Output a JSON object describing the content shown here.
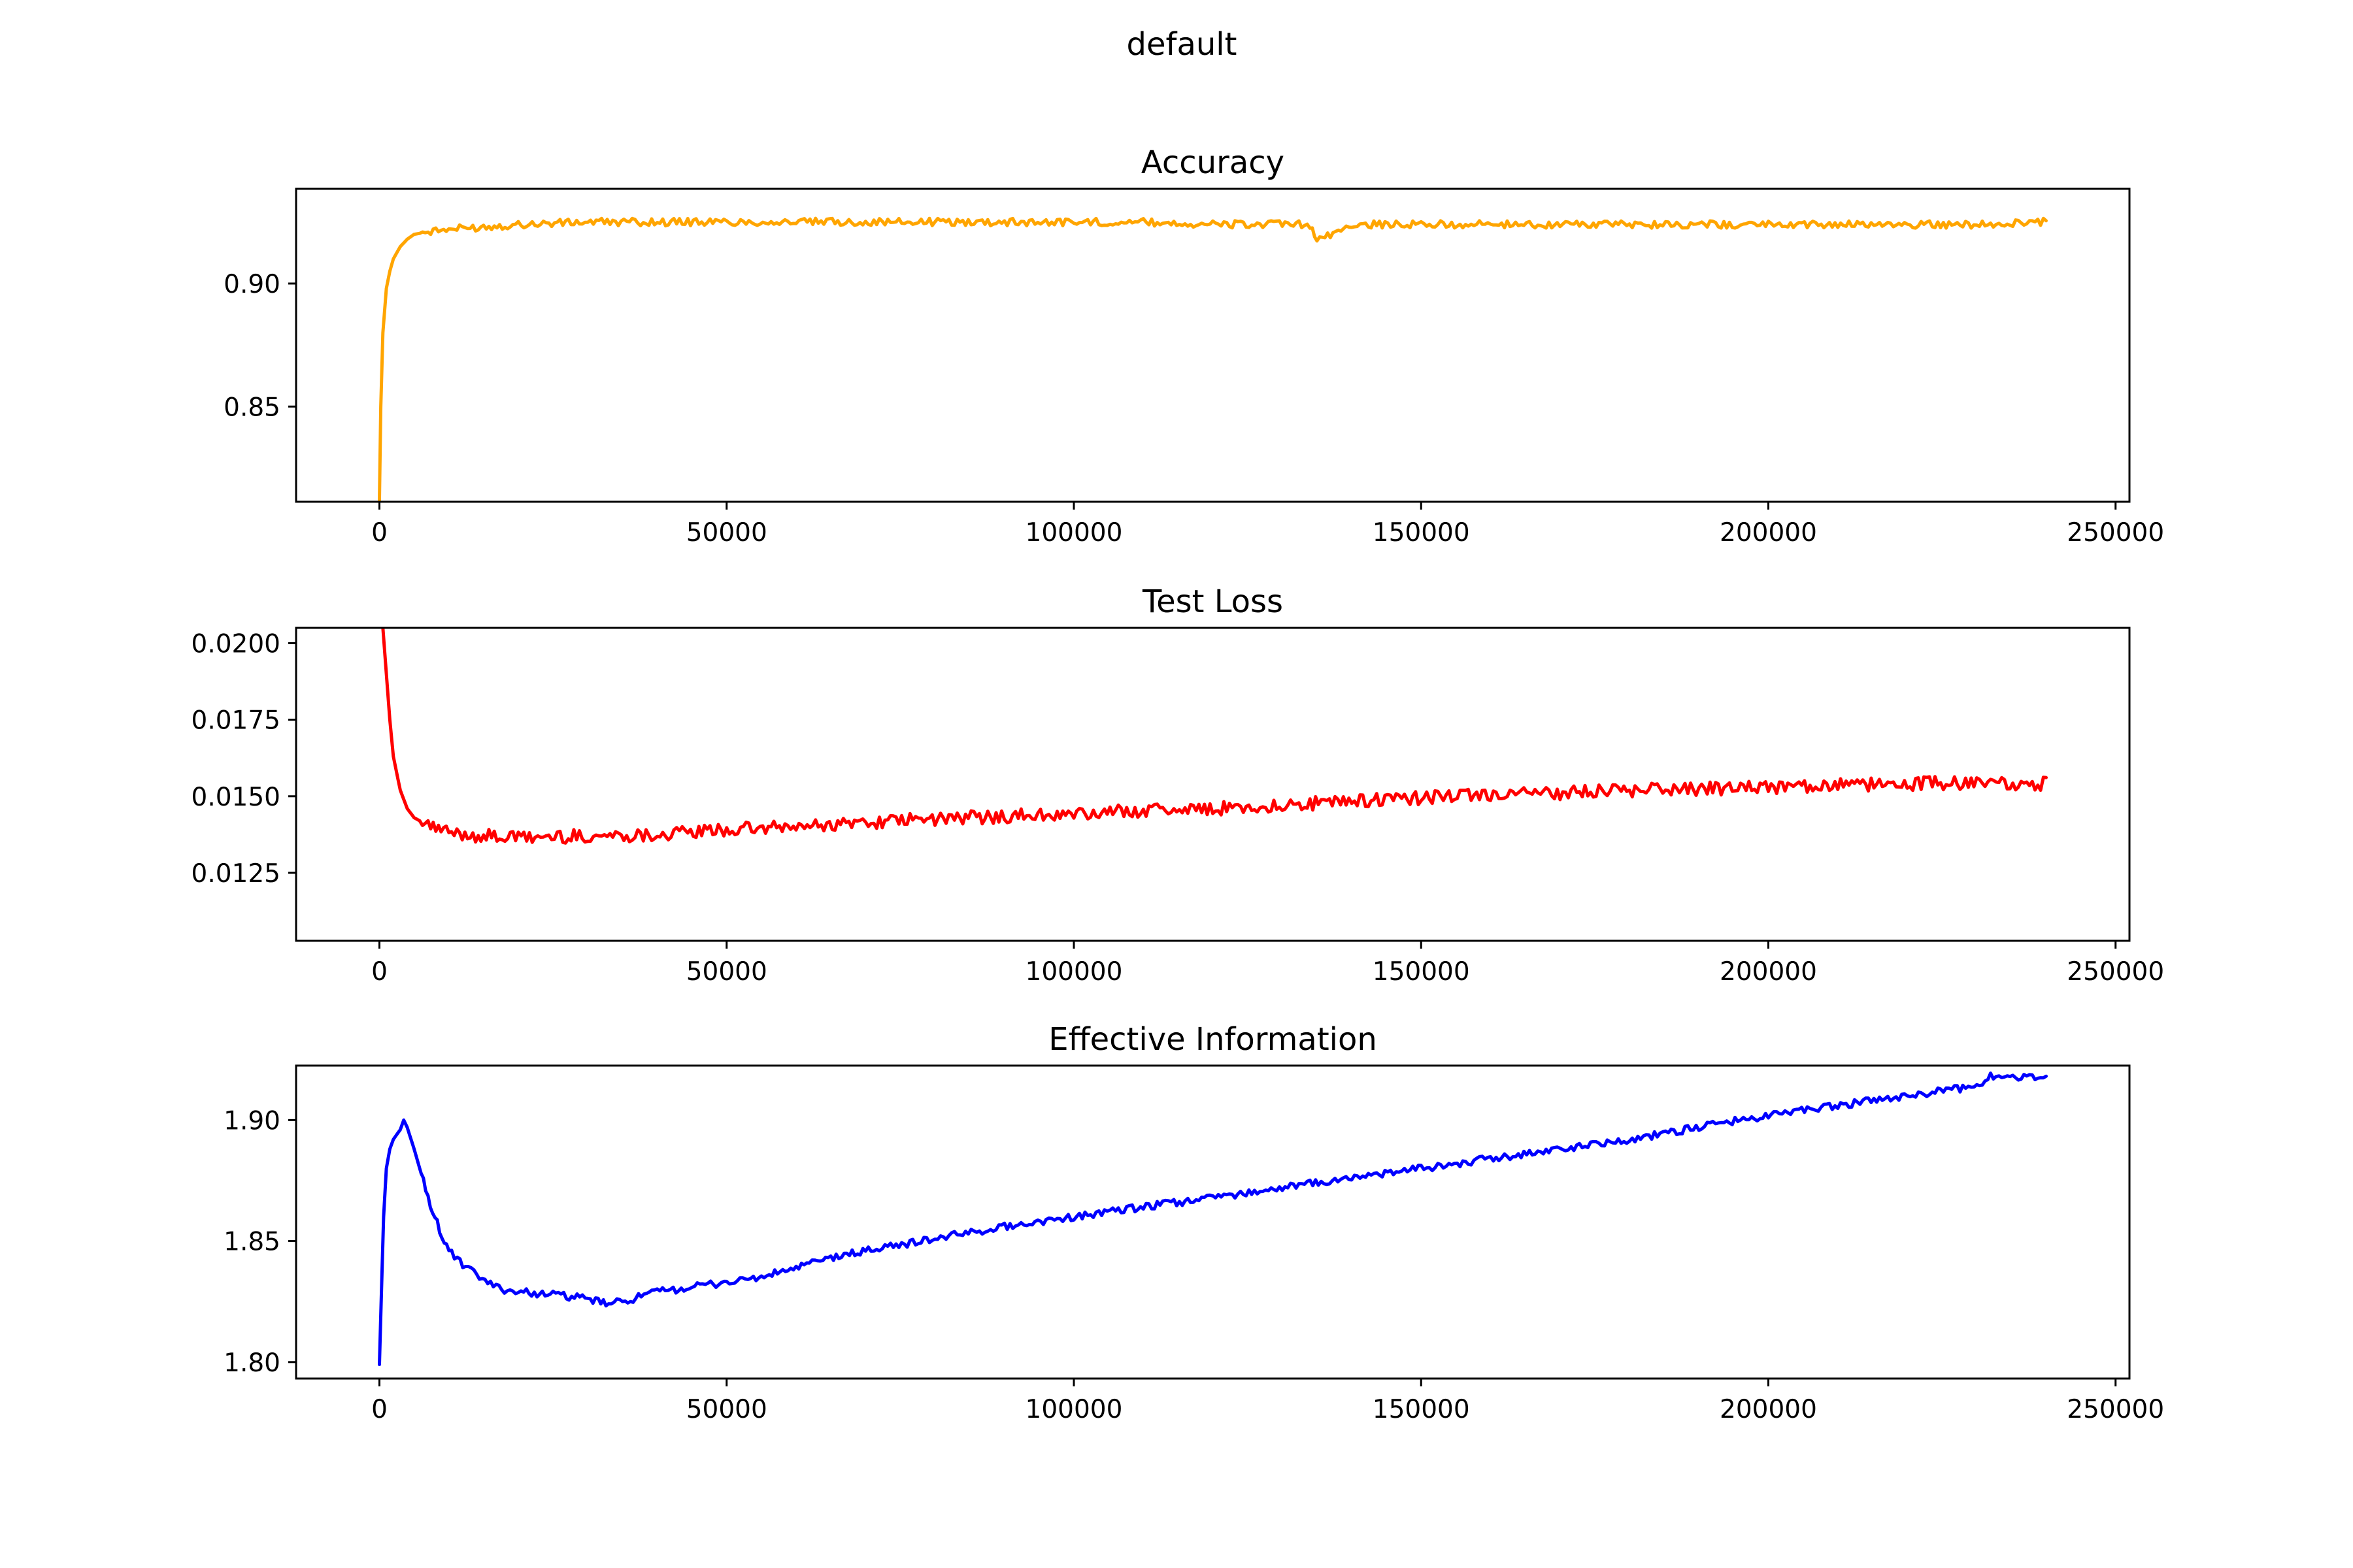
{
  "suptitle": "default",
  "chart_data": [
    {
      "type": "line",
      "title": "Accuracy",
      "xlabel": "",
      "ylabel": "",
      "color": "#ffa500",
      "xlim": [
        -12000,
        252000
      ],
      "ylim": [
        0.8113,
        0.9385
      ],
      "xticks": [
        0,
        50000,
        100000,
        150000,
        200000,
        250000
      ],
      "xtick_labels": [
        "0",
        "50000",
        "100000",
        "150000",
        "200000",
        "250000"
      ],
      "yticks": [
        0.85,
        0.9
      ],
      "ytick_labels": [
        "0.85",
        "0.90"
      ],
      "grid": false,
      "series": [
        {
          "x": [
            0,
            200,
            500,
            1000,
            1500,
            2000,
            3000,
            4000,
            5000,
            7000,
            10000,
            15000,
            20000,
            30000,
            40000,
            50000,
            60000,
            70000,
            80000,
            90000,
            100000,
            110000,
            120000,
            130000,
            134000,
            135000,
            140000,
            150000,
            160000,
            170000,
            180000,
            190000,
            200000,
            210000,
            220000,
            230000,
            240000
          ],
          "y": [
            0.812,
            0.85,
            0.88,
            0.898,
            0.905,
            0.91,
            0.915,
            0.918,
            0.92,
            0.921,
            0.922,
            0.923,
            0.924,
            0.925,
            0.925,
            0.925,
            0.925,
            0.925,
            0.925,
            0.925,
            0.925,
            0.925,
            0.924,
            0.924,
            0.924,
            0.917,
            0.924,
            0.924,
            0.924,
            0.924,
            0.924,
            0.924,
            0.924,
            0.924,
            0.924,
            0.924,
            0.925
          ]
        }
      ]
    },
    {
      "type": "line",
      "title": "Test Loss",
      "xlabel": "",
      "ylabel": "",
      "color": "#ff0000",
      "xlim": [
        -12000,
        252000
      ],
      "ylim": [
        0.01028,
        0.0205
      ],
      "xticks": [
        0,
        50000,
        100000,
        150000,
        200000,
        250000
      ],
      "xtick_labels": [
        "0",
        "50000",
        "100000",
        "150000",
        "200000",
        "250000"
      ],
      "yticks": [
        0.0125,
        0.015,
        0.0175,
        0.02
      ],
      "ytick_labels": [
        "0.0125",
        "0.0150",
        "0.0175",
        "0.0200"
      ],
      "grid": false,
      "series": [
        {
          "x": [
            500,
            1000,
            1500,
            2000,
            3000,
            4000,
            5000,
            7000,
            10000,
            15000,
            20000,
            30000,
            40000,
            50000,
            60000,
            70000,
            80000,
            90000,
            100000,
            110000,
            120000,
            130000,
            140000,
            150000,
            160000,
            170000,
            180000,
            190000,
            200000,
            210000,
            220000,
            230000,
            240000
          ],
          "y": [
            0.0205,
            0.019,
            0.0175,
            0.0163,
            0.0152,
            0.0146,
            0.0143,
            0.01405,
            0.0138,
            0.0137,
            0.01365,
            0.0137,
            0.01375,
            0.0139,
            0.014,
            0.01415,
            0.01425,
            0.01435,
            0.0144,
            0.01455,
            0.0146,
            0.0147,
            0.01485,
            0.01495,
            0.01505,
            0.0151,
            0.0152,
            0.01525,
            0.0153,
            0.01535,
            0.0154,
            0.01545,
            0.0154
          ]
        }
      ]
    },
    {
      "type": "line",
      "title": "Effective Information",
      "xlabel": "",
      "ylabel": "",
      "color": "#0000ff",
      "xlim": [
        -12000,
        252000
      ],
      "ylim": [
        1.7932,
        1.9225
      ],
      "xticks": [
        0,
        50000,
        100000,
        150000,
        200000,
        250000
      ],
      "xtick_labels": [
        "0",
        "50000",
        "100000",
        "150000",
        "200000",
        "250000"
      ],
      "yticks": [
        1.8,
        1.85,
        1.9
      ],
      "ytick_labels": [
        "1.80",
        "1.85",
        "1.90"
      ],
      "grid": false,
      "series": [
        {
          "x": [
            0,
            300,
            600,
            1000,
            1500,
            2000,
            3000,
            3500,
            4000,
            5000,
            6000,
            7000,
            8000,
            9000,
            10000,
            12000,
            14000,
            16000,
            18000,
            20000,
            25000,
            30000,
            33000,
            35000,
            40000,
            45000,
            50000,
            55000,
            60000,
            65000,
            70000,
            80000,
            90000,
            100000,
            110000,
            120000,
            130000,
            140000,
            150000,
            160000,
            170000,
            180000,
            190000,
            200000,
            210000,
            220000,
            230000,
            232000,
            240000
          ],
          "y": [
            1.799,
            1.83,
            1.86,
            1.88,
            1.888,
            1.892,
            1.896,
            1.9,
            1.897,
            1.888,
            1.878,
            1.868,
            1.86,
            1.852,
            1.846,
            1.84,
            1.836,
            1.832,
            1.83,
            1.829,
            1.828,
            1.826,
            1.824,
            1.825,
            1.829,
            1.831,
            1.833,
            1.835,
            1.839,
            1.843,
            1.846,
            1.851,
            1.856,
            1.86,
            1.864,
            1.868,
            1.872,
            1.876,
            1.88,
            1.884,
            1.888,
            1.892,
            1.897,
            1.902,
            1.906,
            1.91,
            1.914,
            1.918,
            1.918
          ]
        }
      ]
    }
  ]
}
